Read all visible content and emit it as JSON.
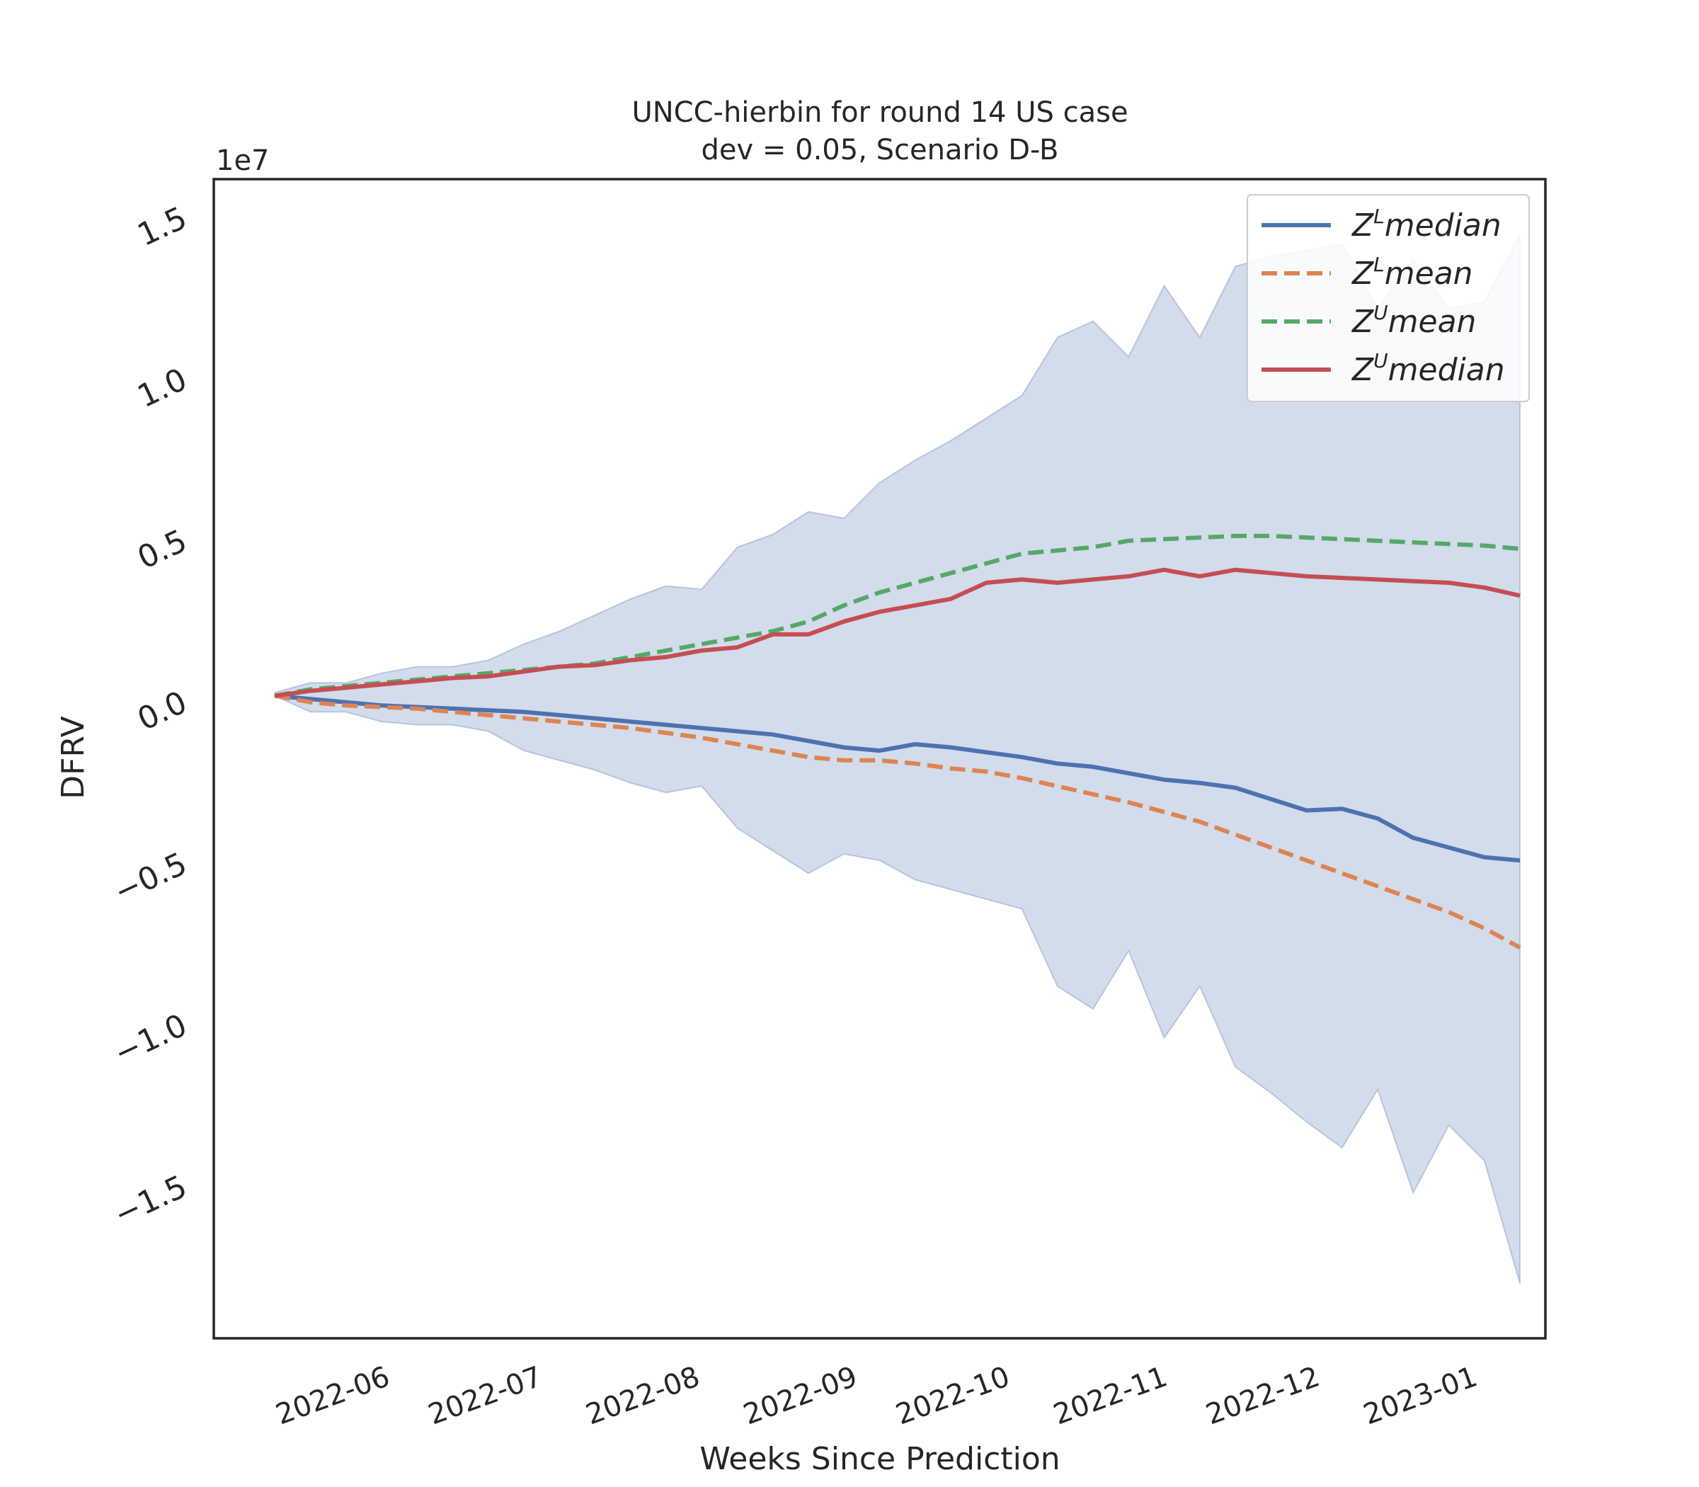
{
  "chart_data": {
    "type": "line",
    "title": "UNCC-hierbin for round 14 US case",
    "subtitle": "dev = 0.05, Scenario D-B",
    "xlabel": "Weeks Since Prediction",
    "ylabel": "DFRV",
    "y_multiplier_label": "1e7",
    "ylim": [
      -1.97,
      1.62
    ],
    "y_ticks": [
      1.5,
      1.0,
      0.5,
      0.0,
      -0.5,
      -1.0,
      -1.5
    ],
    "y_tick_labels": [
      "1.5",
      "1.0",
      "0.5",
      "0.0",
      "−0.5",
      "−1.0",
      "−1.5"
    ],
    "xlim": [
      "2022-05-04",
      "2023-01-21"
    ],
    "x_ticks": [
      "2022-06-01",
      "2022-07-01",
      "2022-08-01",
      "2022-09-01",
      "2022-10-01",
      "2022-11-01",
      "2022-12-01",
      "2023-01-01"
    ],
    "x_tick_labels": [
      "2022-06",
      "2022-07",
      "2022-08",
      "2022-09",
      "2022-10",
      "2022-11",
      "2022-12",
      "2023-01"
    ],
    "x": [
      "2022-05-16",
      "2022-05-23",
      "2022-05-30",
      "2022-06-06",
      "2022-06-13",
      "2022-06-20",
      "2022-06-27",
      "2022-07-04",
      "2022-07-11",
      "2022-07-18",
      "2022-07-25",
      "2022-08-01",
      "2022-08-08",
      "2022-08-15",
      "2022-08-22",
      "2022-08-29",
      "2022-09-05",
      "2022-09-12",
      "2022-09-19",
      "2022-09-26",
      "2022-10-03",
      "2022-10-10",
      "2022-10-17",
      "2022-10-24",
      "2022-10-31",
      "2022-11-07",
      "2022-11-14",
      "2022-11-21",
      "2022-11-28",
      "2022-12-05",
      "2022-12-12",
      "2022-12-19",
      "2022-12-26",
      "2023-01-02",
      "2023-01-09",
      "2023-01-16"
    ],
    "band": {
      "upper": [
        0.03,
        0.06,
        0.06,
        0.09,
        0.11,
        0.11,
        0.13,
        0.18,
        0.22,
        0.27,
        0.32,
        0.36,
        0.35,
        0.48,
        0.52,
        0.59,
        0.57,
        0.68,
        0.75,
        0.81,
        0.88,
        0.95,
        1.13,
        1.18,
        1.07,
        1.29,
        1.13,
        1.35,
        1.38,
        1.4,
        1.42,
        1.22,
        1.37,
        1.22,
        1.24,
        1.45
      ],
      "lower": [
        0.02,
        -0.03,
        -0.03,
        -0.06,
        -0.07,
        -0.07,
        -0.09,
        -0.15,
        -0.18,
        -0.21,
        -0.25,
        -0.28,
        -0.26,
        -0.39,
        -0.46,
        -0.53,
        -0.47,
        -0.49,
        -0.55,
        -0.58,
        -0.61,
        -0.64,
        -0.88,
        -0.95,
        -0.77,
        -1.04,
        -0.88,
        -1.13,
        -1.21,
        -1.3,
        -1.38,
        -1.2,
        -1.52,
        -1.31,
        -1.42,
        -1.8
      ]
    },
    "series": [
      {
        "name": "Z^L median",
        "label_base": "Z",
        "label_sup": "L",
        "label_rest": "median",
        "color": "#4c72b0",
        "dash": "solid",
        "values": [
          0.02,
          0.01,
          0.0,
          -0.01,
          -0.015,
          -0.02,
          -0.025,
          -0.03,
          -0.04,
          -0.05,
          -0.06,
          -0.07,
          -0.08,
          -0.09,
          -0.1,
          -0.12,
          -0.14,
          -0.15,
          -0.13,
          -0.14,
          -0.155,
          -0.17,
          -0.19,
          -0.2,
          -0.22,
          -0.24,
          -0.25,
          -0.265,
          -0.3,
          -0.335,
          -0.33,
          -0.36,
          -0.42,
          -0.45,
          -0.48,
          -0.49
        ]
      },
      {
        "name": "Z^L mean",
        "label_base": "Z",
        "label_sup": "L",
        "label_rest": "mean",
        "color": "#dd8452",
        "dash": "dashed",
        "values": [
          0.02,
          0.0,
          -0.01,
          -0.015,
          -0.02,
          -0.03,
          -0.04,
          -0.05,
          -0.06,
          -0.07,
          -0.08,
          -0.095,
          -0.11,
          -0.13,
          -0.15,
          -0.17,
          -0.18,
          -0.18,
          -0.19,
          -0.205,
          -0.215,
          -0.235,
          -0.26,
          -0.285,
          -0.31,
          -0.34,
          -0.37,
          -0.41,
          -0.45,
          -0.49,
          -0.53,
          -0.57,
          -0.61,
          -0.65,
          -0.7,
          -0.76
        ]
      },
      {
        "name": "Z^U mean",
        "label_base": "Z",
        "label_sup": "U",
        "label_rest": "mean",
        "color": "#55a868",
        "dash": "dashed",
        "values": [
          0.02,
          0.04,
          0.05,
          0.06,
          0.07,
          0.08,
          0.09,
          0.1,
          0.11,
          0.12,
          0.14,
          0.16,
          0.18,
          0.2,
          0.22,
          0.25,
          0.3,
          0.34,
          0.37,
          0.4,
          0.43,
          0.46,
          0.47,
          0.48,
          0.5,
          0.505,
          0.51,
          0.515,
          0.515,
          0.51,
          0.505,
          0.5,
          0.495,
          0.49,
          0.485,
          0.475
        ]
      },
      {
        "name": "Z^U median",
        "label_base": "Z",
        "label_sup": "U",
        "label_rest": "median",
        "color": "#c44e52",
        "dash": "solid",
        "values": [
          0.02,
          0.035,
          0.045,
          0.055,
          0.065,
          0.075,
          0.08,
          0.095,
          0.11,
          0.115,
          0.13,
          0.14,
          0.16,
          0.17,
          0.21,
          0.21,
          0.25,
          0.28,
          0.3,
          0.32,
          0.37,
          0.38,
          0.37,
          0.38,
          0.39,
          0.41,
          0.39,
          0.41,
          0.4,
          0.39,
          0.385,
          0.38,
          0.375,
          0.37,
          0.355,
          0.33
        ]
      }
    ],
    "band_color": "#4c72b0",
    "grid": false,
    "legend_position": "top-right"
  }
}
